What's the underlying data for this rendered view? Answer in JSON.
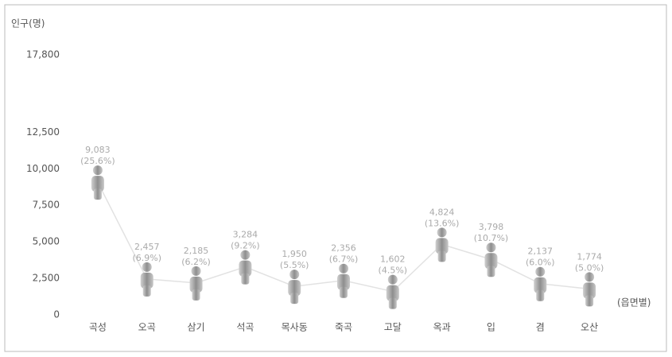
{
  "chart_data": {
    "type": "pictorial-line",
    "y_label": "인구(명)",
    "x_label": "(읍면별)",
    "categories": [
      "곡성",
      "오곡",
      "삼기",
      "석곡",
      "목사동",
      "죽곡",
      "고달",
      "옥과",
      "입",
      "겸",
      "오산"
    ],
    "values": [
      9083,
      2457,
      2185,
      3284,
      1950,
      2356,
      1602,
      4824,
      3798,
      2137,
      1774
    ],
    "value_labels": [
      "9,083",
      "2,457",
      "2,185",
      "3,284",
      "1,950",
      "2,356",
      "1,602",
      "4,824",
      "3,798",
      "2,137",
      "1,774"
    ],
    "share_labels": [
      "(25.6%)",
      "(6.9%)",
      "(6.2%)",
      "(9.2%)",
      "(5.5%)",
      "(6.7%)",
      "(4.5%)",
      "(13.6%)",
      "(10.7%)",
      "(6.0%)",
      "(5.0%)"
    ],
    "color": "#a8a8a8",
    "ylim": [
      0,
      17800
    ],
    "yticks": [
      0,
      {
        "value": 2500,
        "label": "2,500"
      },
      {
        "value": 5000,
        "label": "5,000"
      },
      {
        "value": 7500,
        "label": "7,500"
      },
      {
        "value": 10000,
        "label": "10,000"
      },
      {
        "value": 12500,
        "label": "12,500"
      },
      {
        "value": 17800,
        "label": "17,800"
      }
    ]
  }
}
